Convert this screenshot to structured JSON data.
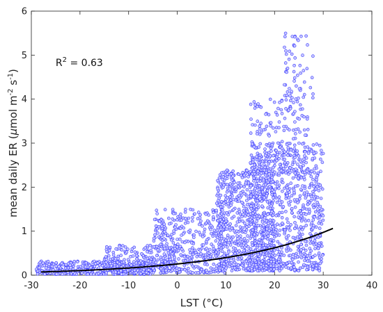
{
  "chart_data": {
    "type": "scatter",
    "title": "",
    "xlabel": "LST (°C)",
    "ylabel_parts": {
      "prefix": "mean daily ER (",
      "mu": "μ",
      "unit_a": "mol m",
      "exp_a": "-2",
      "unit_b": " s",
      "exp_b": "-1",
      "suffix": ")"
    },
    "xlim": [
      -30,
      40
    ],
    "ylim": [
      0,
      6
    ],
    "x_ticks": [
      "-30",
      "-20",
      "-10",
      "0",
      "10",
      "20",
      "30",
      "40"
    ],
    "y_ticks": [
      "0",
      "1",
      "2",
      "3",
      "4",
      "5",
      "6"
    ],
    "grid": false,
    "annotation": {
      "r_letter": "R",
      "r_exp": "2",
      "r_value": " = 0.63",
      "x": -25,
      "y": 4.75
    },
    "fit_curve": {
      "type": "exponential",
      "a": 0.255,
      "b": 0.0446,
      "x_range": [
        -28,
        32
      ],
      "color": "#000000"
    },
    "marker_color": "#3333ff",
    "marker_fill": "#c8c8ff",
    "point_clusters": [
      {
        "x_range": [
          -29,
          -5
        ],
        "y_min": 0.02,
        "y_max": 0.32,
        "count": 420
      },
      {
        "x_range": [
          -15,
          0
        ],
        "y_min": 0.1,
        "y_max": 0.7,
        "count": 200
      },
      {
        "x_range": [
          -5,
          10
        ],
        "y_min": 0.05,
        "y_max": 1.5,
        "count": 420
      },
      {
        "x_range": [
          8,
          20
        ],
        "y_min": 0.1,
        "y_max": 2.4,
        "count": 700
      },
      {
        "x_range": [
          15,
          30
        ],
        "y_min": 0.1,
        "y_max": 3.0,
        "count": 800
      },
      {
        "x_range": [
          15,
          27
        ],
        "y_min": 2.3,
        "y_max": 4.0,
        "count": 200
      },
      {
        "x_range": [
          22,
          28
        ],
        "y_min": 4.0,
        "y_max": 5.5,
        "count": 60
      }
    ]
  }
}
